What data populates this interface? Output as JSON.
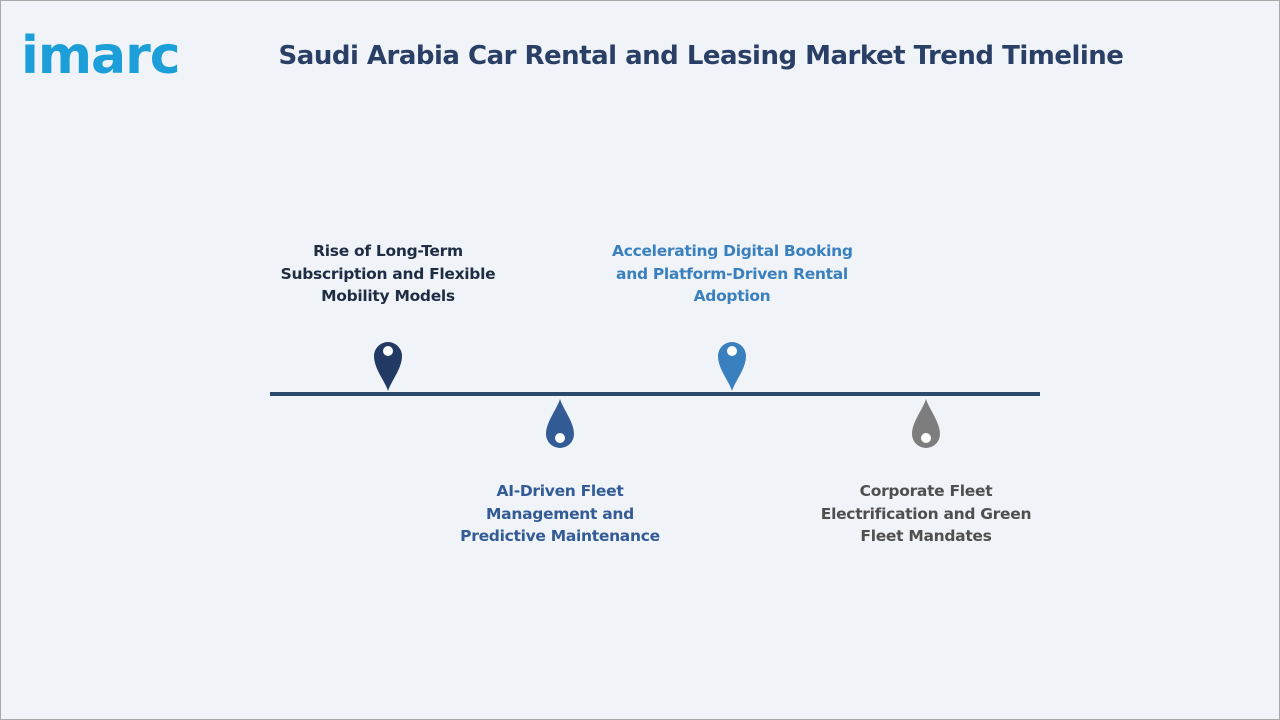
{
  "brand": {
    "logo_text": "imarc",
    "logo_color": "#1c9fd9"
  },
  "header": {
    "title": "Saudi Arabia Car Rental and Leasing Market Trend Timeline",
    "title_color": "#2a3f66"
  },
  "timeline": {
    "line_color": "#2b4a6b",
    "events": [
      {
        "lines": [
          "Rise of Long-Term",
          "Subscription and Flexible",
          "Mobility Models"
        ],
        "position": "above",
        "color": "#223a63",
        "text_color": "#1f2d44",
        "marker_icon": "map-pin-icon"
      },
      {
        "lines": [
          "AI-Driven Fleet",
          "Management and",
          "Predictive Maintenance"
        ],
        "position": "below",
        "color": "#335b96",
        "text_color": "#335b96",
        "marker_icon": "map-pin-icon"
      },
      {
        "lines": [
          "Accelerating Digital Booking",
          "and Platform-Driven Rental",
          "Adoption"
        ],
        "position": "above",
        "color": "#3a80bf",
        "text_color": "#3a80bf",
        "marker_icon": "map-pin-icon"
      },
      {
        "lines": [
          "Corporate Fleet",
          "Electrification and Green",
          "Fleet Mandates"
        ],
        "position": "below",
        "color": "#7d7d7d",
        "text_color": "#4f4f4f",
        "marker_icon": "map-pin-icon"
      }
    ]
  }
}
